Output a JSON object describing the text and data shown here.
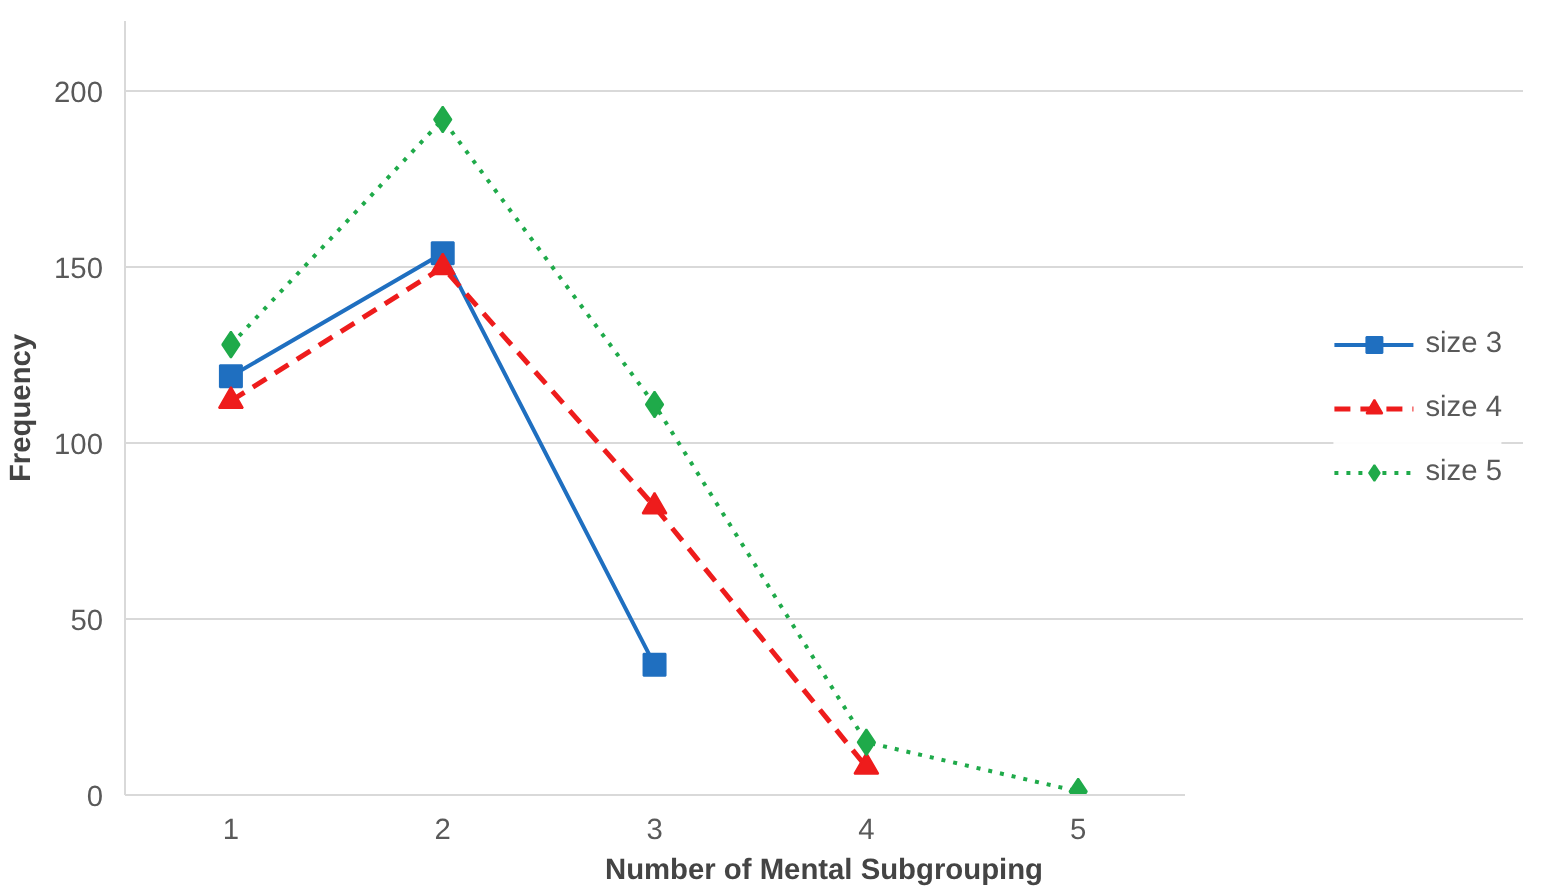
{
  "chart_data": {
    "type": "line",
    "xlabel": "Number of Mental Subgrouping",
    "ylabel": "Frequency",
    "categories": [
      "1",
      "2",
      "3",
      "4",
      "5"
    ],
    "series": [
      {
        "name": "size 3",
        "color": "#1f6fc0",
        "values": [
          119,
          154,
          37,
          null,
          null
        ],
        "marker": "square",
        "line_style": "solid"
      },
      {
        "name": "size 4",
        "color": "#ee1c1c",
        "values": [
          112,
          150,
          82,
          8,
          null
        ],
        "marker": "triangle",
        "line_style": "dashed"
      },
      {
        "name": "size 5",
        "color": "#1faa4a",
        "values": [
          128,
          192,
          111,
          15,
          1
        ],
        "marker": "diamond",
        "line_style": "dotted"
      }
    ],
    "ylim": [
      0,
      220
    ],
    "yticks": [
      0,
      50,
      100,
      150,
      200
    ],
    "grid": "y",
    "legend": "right"
  }
}
